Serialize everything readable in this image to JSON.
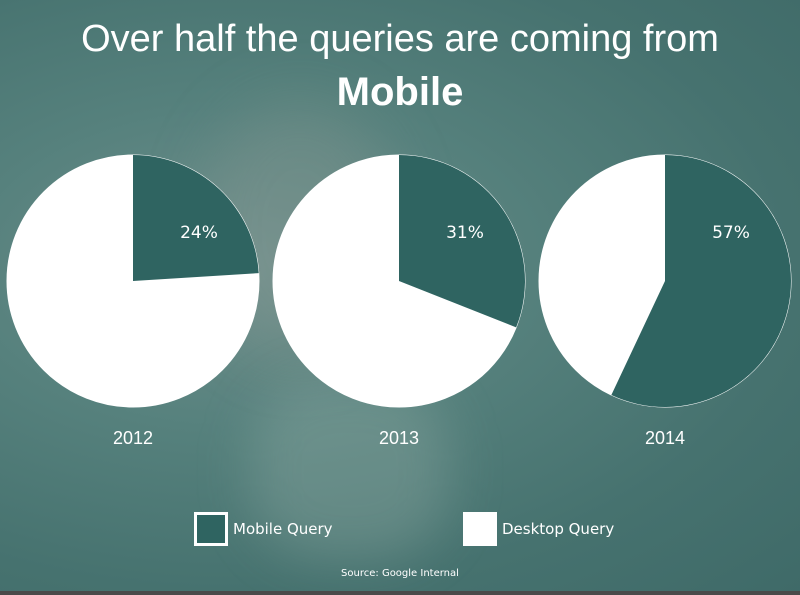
{
  "title_line1": "Over half the queries are coming from",
  "title_line2": "Mobile",
  "colors": {
    "mobile": "#2f6461",
    "desktop": "#ffffff"
  },
  "chart_data": {
    "type": "pie",
    "title": "Over half the queries are coming from Mobile",
    "charts": [
      {
        "label": "2012",
        "mobile": 24,
        "desktop": 76,
        "data_label": "24%"
      },
      {
        "label": "2013",
        "mobile": 31,
        "desktop": 69,
        "data_label": "31%"
      },
      {
        "label": "2014",
        "mobile": 57,
        "desktop": 43,
        "data_label": "57%"
      }
    ],
    "legend": [
      "Mobile Query",
      "Desktop Query"
    ],
    "legend_placement": "bottom"
  },
  "source": "Source: Google Internal"
}
